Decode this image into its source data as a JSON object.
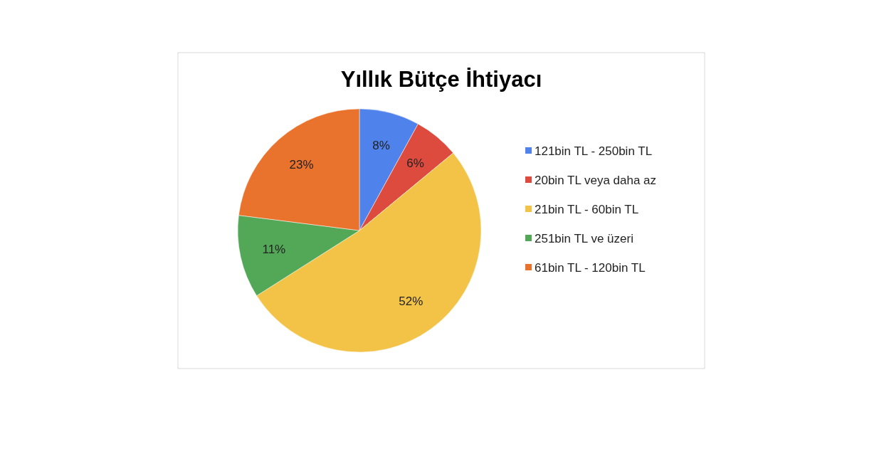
{
  "chart_data": {
    "type": "pie",
    "title": "Yıllık Bütçe İhtiyacı",
    "categories": [
      "121bin TL - 250bin TL",
      "20bin TL veya daha az",
      "21bin TL - 60bin TL",
      "251bin TL ve üzeri",
      "61bin TL - 120bin TL"
    ],
    "values": [
      8,
      6,
      52,
      11,
      23
    ],
    "colors": [
      "#4f82ea",
      "#dc4b3e",
      "#f2c347",
      "#52a857",
      "#e9722c"
    ],
    "value_labels": [
      "8%",
      "6%",
      "52%",
      "11%",
      "23%"
    ],
    "legend": "right"
  }
}
